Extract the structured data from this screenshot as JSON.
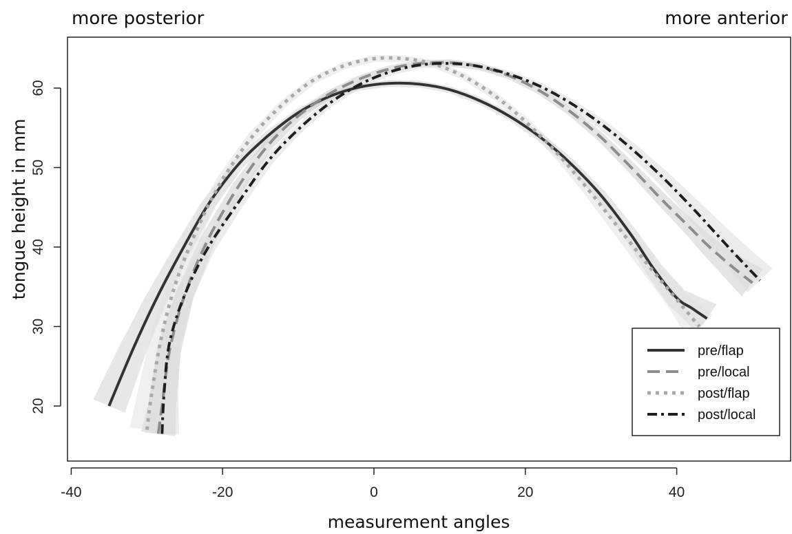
{
  "chart_data": {
    "type": "line",
    "title": "",
    "top_left_label": "more posterior",
    "top_right_label": "more anterior",
    "xlabel": "measurement angles",
    "ylabel": "tongue height in mm",
    "xlim": [
      -40,
      55
    ],
    "ylim": [
      13,
      71
    ],
    "x_ticks": [
      -40,
      -20,
      0,
      20,
      40
    ],
    "y_ticks": [
      20,
      30,
      40,
      50,
      60
    ],
    "grid": false,
    "legend_position": "bottom-right",
    "confidence_bands": true,
    "series": [
      {
        "name": "pre/flap",
        "color": "#333333",
        "band_color": "#d4d4d4",
        "dash": "",
        "width": 4,
        "x": [
          -35,
          -32,
          -29,
          -26,
          -22,
          -18,
          -14,
          -10,
          -6,
          -2,
          2,
          6,
          10,
          14,
          18,
          22,
          26,
          30,
          34,
          37,
          40,
          42,
          44
        ],
        "y": [
          20,
          26.8,
          33,
          38.5,
          45.2,
          50.3,
          54,
          56.9,
          58.9,
          60.1,
          60.6,
          60.5,
          59.8,
          58.4,
          56.4,
          53.8,
          50.5,
          46.5,
          41.5,
          37.2,
          33.6,
          32.3,
          31
        ]
      },
      {
        "name": "pre/local",
        "color": "#8c8c8c",
        "band_color": "#cfcfcf",
        "dash": "18,9",
        "width": 4,
        "x": [
          -28.5,
          -28,
          -27,
          -25,
          -22,
          -18,
          -14,
          -10,
          -6,
          -2,
          2,
          6,
          10,
          14,
          18,
          22,
          26,
          30,
          34,
          38,
          42,
          44,
          46,
          48,
          50
        ],
        "y": [
          16.5,
          20,
          27,
          34,
          40.8,
          47.5,
          52.8,
          56.5,
          59.2,
          61.1,
          62.4,
          63.1,
          63.2,
          62.7,
          61.5,
          59.6,
          57,
          53.8,
          50,
          46,
          42.2,
          40.3,
          38.6,
          37,
          35.5
        ]
      },
      {
        "name": "post/flap",
        "color": "#a8a8a8",
        "band_color": "#e2e2e2",
        "dash": "5,7",
        "width": 5,
        "x": [
          -30,
          -29.3,
          -28,
          -26,
          -23,
          -20,
          -16,
          -12,
          -8,
          -4,
          0,
          4,
          8,
          12,
          16,
          20,
          24,
          28,
          32,
          36,
          40,
          41.5,
          43
        ],
        "y": [
          17,
          22,
          29,
          36,
          43,
          48.5,
          54,
          58,
          61,
          62.8,
          63.7,
          63.7,
          63,
          61.4,
          59,
          55.8,
          52,
          47.6,
          42.8,
          38,
          33.4,
          31.7,
          30
        ]
      },
      {
        "name": "post/local",
        "color": "#1e1e1e",
        "band_color": "#dcdcdc",
        "dash": "14,6,4,6",
        "width": 4,
        "x": [
          -28,
          -27.7,
          -27,
          -25,
          -22,
          -18,
          -14,
          -10,
          -6,
          -2,
          2,
          6,
          10,
          14,
          18,
          22,
          26,
          30,
          34,
          38,
          42,
          45,
          48,
          51
        ],
        "y": [
          16.5,
          22,
          28,
          34,
          39.8,
          45.5,
          50.8,
          54.8,
          58,
          60.4,
          62,
          62.9,
          63.1,
          62.7,
          61.7,
          60.2,
          58.1,
          55.5,
          52.4,
          48.9,
          45,
          41.9,
          38.8,
          35.8
        ]
      }
    ]
  }
}
